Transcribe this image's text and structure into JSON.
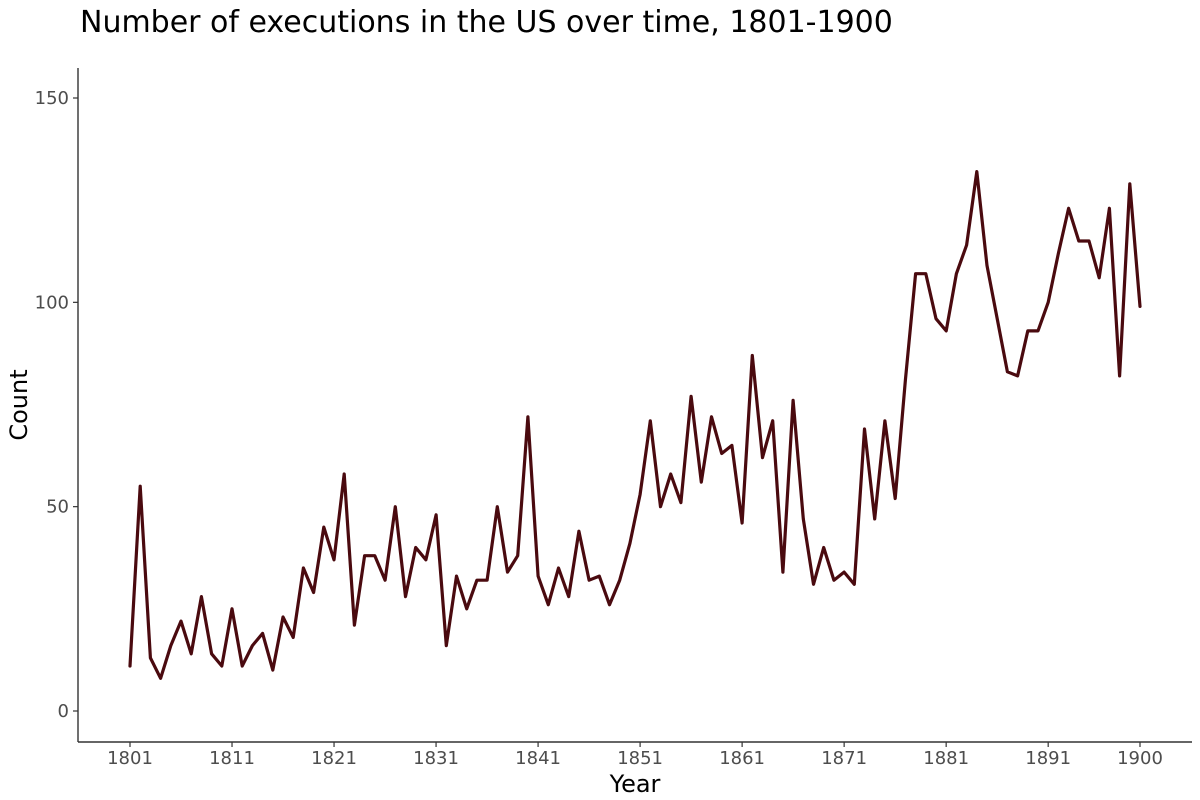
{
  "chart_data": {
    "type": "line",
    "title": "Number of executions in the US over time, 1801-1900",
    "xlabel": "Year",
    "ylabel": "Count",
    "xlim": [
      1801,
      1900
    ],
    "ylim": [
      0,
      150
    ],
    "x_ticks": [
      1801,
      1811,
      1821,
      1831,
      1841,
      1851,
      1861,
      1871,
      1881,
      1891,
      1900
    ],
    "y_ticks": [
      0,
      50,
      100,
      150
    ],
    "grid": false,
    "legend": "none",
    "line_color": "#4a0a0f",
    "series": [
      {
        "name": "Count",
        "x": [
          1801,
          1802,
          1803,
          1804,
          1805,
          1806,
          1807,
          1808,
          1809,
          1810,
          1811,
          1812,
          1813,
          1814,
          1815,
          1816,
          1817,
          1818,
          1819,
          1820,
          1821,
          1822,
          1823,
          1824,
          1825,
          1826,
          1827,
          1828,
          1829,
          1830,
          1831,
          1832,
          1833,
          1834,
          1835,
          1836,
          1837,
          1838,
          1839,
          1840,
          1841,
          1842,
          1843,
          1844,
          1845,
          1846,
          1847,
          1848,
          1849,
          1850,
          1851,
          1852,
          1853,
          1854,
          1855,
          1856,
          1857,
          1858,
          1859,
          1860,
          1861,
          1862,
          1863,
          1864,
          1865,
          1866,
          1867,
          1868,
          1869,
          1870,
          1871,
          1872,
          1873,
          1874,
          1875,
          1876,
          1877,
          1878,
          1879,
          1880,
          1881,
          1882,
          1883,
          1884,
          1885,
          1886,
          1887,
          1888,
          1889,
          1890,
          1891,
          1892,
          1893,
          1894,
          1895,
          1896,
          1897,
          1898,
          1899,
          1900
        ],
        "values": [
          11,
          55,
          13,
          8,
          16,
          22,
          14,
          28,
          14,
          11,
          25,
          11,
          16,
          19,
          10,
          23,
          18,
          35,
          29,
          45,
          37,
          58,
          21,
          38,
          38,
          32,
          50,
          28,
          40,
          37,
          48,
          16,
          33,
          25,
          32,
          32,
          50,
          34,
          38,
          72,
          33,
          26,
          35,
          28,
          44,
          32,
          33,
          26,
          32,
          41,
          53,
          71,
          50,
          58,
          51,
          77,
          56,
          72,
          63,
          65,
          46,
          87,
          62,
          71,
          34,
          76,
          47,
          31,
          40,
          32,
          34,
          31,
          69,
          47,
          71,
          52,
          81,
          107,
          107,
          96,
          93,
          107,
          114,
          132,
          109,
          96,
          83,
          82,
          93,
          93,
          100,
          112,
          123,
          115,
          115,
          106,
          123,
          82,
          129,
          99
        ]
      }
    ]
  }
}
